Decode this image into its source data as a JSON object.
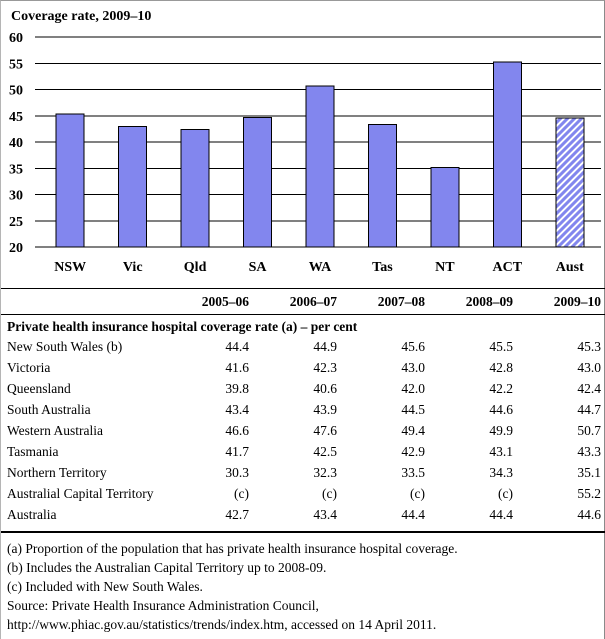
{
  "chart_data": {
    "type": "bar",
    "title": "Coverage rate, 2009–10",
    "categories": [
      "NSW",
      "Vic",
      "Qld",
      "SA",
      "WA",
      "Tas",
      "NT",
      "ACT",
      "Aust"
    ],
    "values": [
      45.3,
      43.0,
      42.4,
      44.7,
      50.7,
      43.3,
      35.1,
      55.2,
      44.6
    ],
    "ylabel": "",
    "xlabel": "",
    "ylim": [
      20,
      60
    ],
    "yticks": [
      60,
      55,
      50,
      45,
      40,
      35,
      30,
      25,
      20
    ],
    "grid": true,
    "legend": "none",
    "bar_color": "#8286ee",
    "bar_border_color": "#000000",
    "hatched_category": "Aust",
    "hatch_style": "diagonal-forward"
  },
  "table": {
    "columns": [
      "2005–06",
      "2006–07",
      "2007–08",
      "2008–09",
      "2009–10"
    ],
    "section_title": "Private health insurance hospital coverage rate (a) – per cent",
    "rows": [
      {
        "label": "New South Wales (b)",
        "values": [
          "44.4",
          "44.9",
          "45.6",
          "45.5",
          "45.3"
        ]
      },
      {
        "label": "Victoria",
        "values": [
          "41.6",
          "42.3",
          "43.0",
          "42.8",
          "43.0"
        ]
      },
      {
        "label": "Queensland",
        "values": [
          "39.8",
          "40.6",
          "42.0",
          "42.2",
          "42.4"
        ]
      },
      {
        "label": "South Australia",
        "values": [
          "43.4",
          "43.9",
          "44.5",
          "44.6",
          "44.7"
        ]
      },
      {
        "label": "Western Australia",
        "values": [
          "46.6",
          "47.6",
          "49.4",
          "49.9",
          "50.7"
        ]
      },
      {
        "label": "Tasmania",
        "values": [
          "41.7",
          "42.5",
          "42.9",
          "43.1",
          "43.3"
        ]
      },
      {
        "label": "Northern Territory",
        "values": [
          "30.3",
          "32.3",
          "33.5",
          "34.3",
          "35.1"
        ]
      },
      {
        "label": "Australial Capital Territory",
        "values": [
          "(c)",
          "(c)",
          "(c)",
          "(c)",
          "55.2"
        ]
      },
      {
        "label": "Australia",
        "values": [
          "42.7",
          "43.4",
          "44.4",
          "44.4",
          "44.6"
        ]
      }
    ]
  },
  "footnotes": [
    "(a) Proportion of the population that has private health insurance hospital coverage.",
    "(b) Includes the Australian Capital Territory up to 2008-09.",
    "(c) Included with New South Wales.",
    "Source: Private Health Insurance Administration Council, http://www.phiac.gov.au/statistics/trends/index.htm, accessed on 14 April 2011."
  ]
}
